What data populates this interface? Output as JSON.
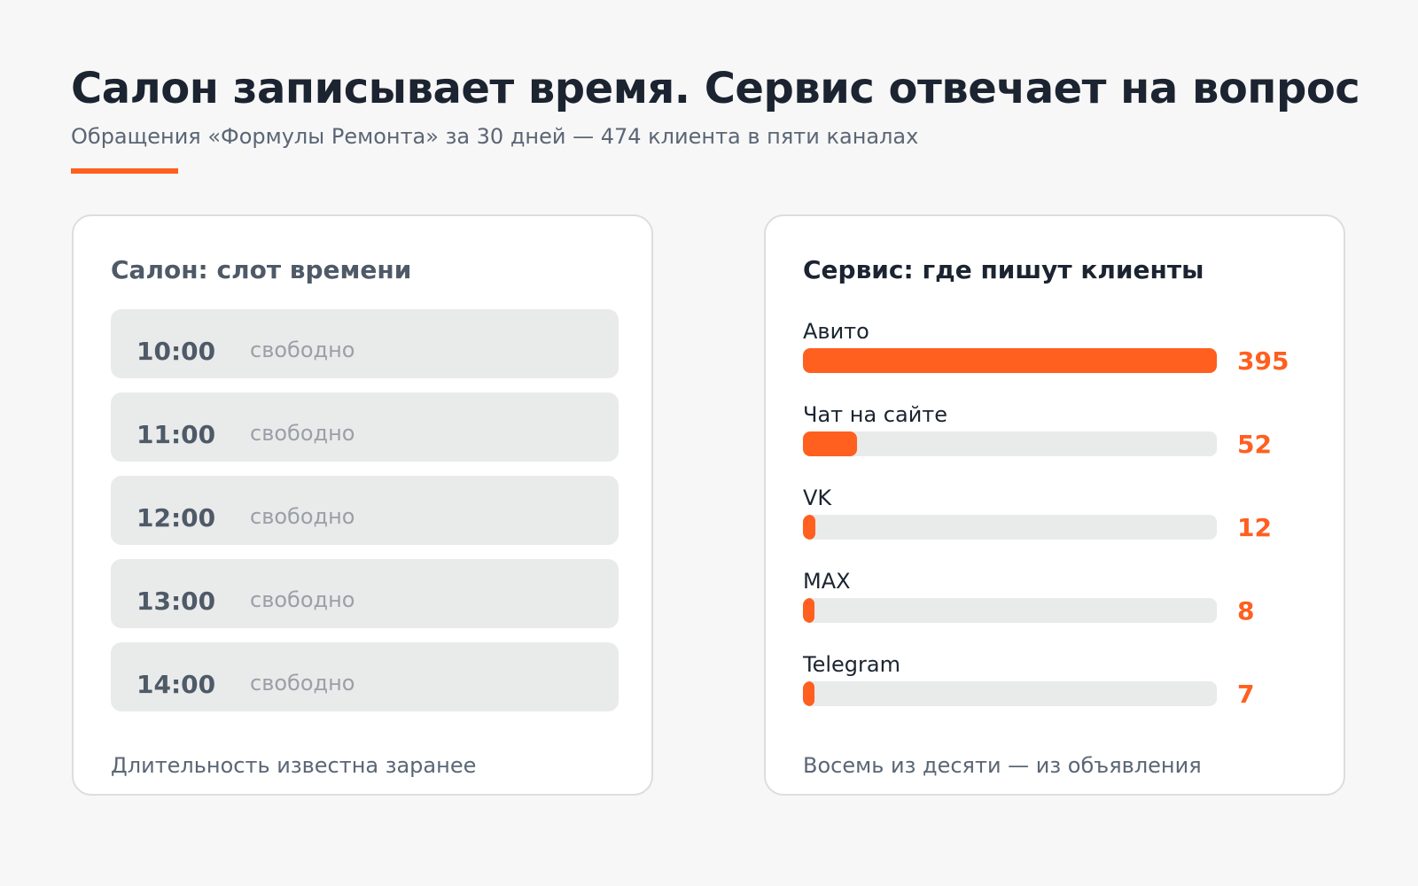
{
  "title": "Салон записывает время. Сервис отвечает на вопрос",
  "subtitle": "Обращения «Формулы Ремонта» за 30 дней — 474 клиента в пяти каналах",
  "colors": {
    "accent": "#ff5f1f",
    "track": "#e9eaea",
    "text_dark": "#1b2430",
    "text_muted": "#5b6675"
  },
  "salon": {
    "title": "Салон: слот времени",
    "slots": [
      {
        "time": "10:00",
        "status": "свободно"
      },
      {
        "time": "11:00",
        "status": "свободно"
      },
      {
        "time": "12:00",
        "status": "свободно"
      },
      {
        "time": "13:00",
        "status": "свободно"
      },
      {
        "time": "14:00",
        "status": "свободно"
      }
    ],
    "footer": "Длительность известна заранее"
  },
  "service": {
    "title": "Сервис: где пишут клиенты",
    "footer": "Восемь из десяти — из объявления"
  },
  "chart_data": {
    "type": "bar",
    "orientation": "horizontal",
    "categories": [
      "Авито",
      "Чат на сайте",
      "VK",
      "MAX",
      "Telegram"
    ],
    "values": [
      395,
      52,
      12,
      8,
      7
    ],
    "xlim": [
      0,
      395
    ],
    "grid": false,
    "data_labels": true
  }
}
